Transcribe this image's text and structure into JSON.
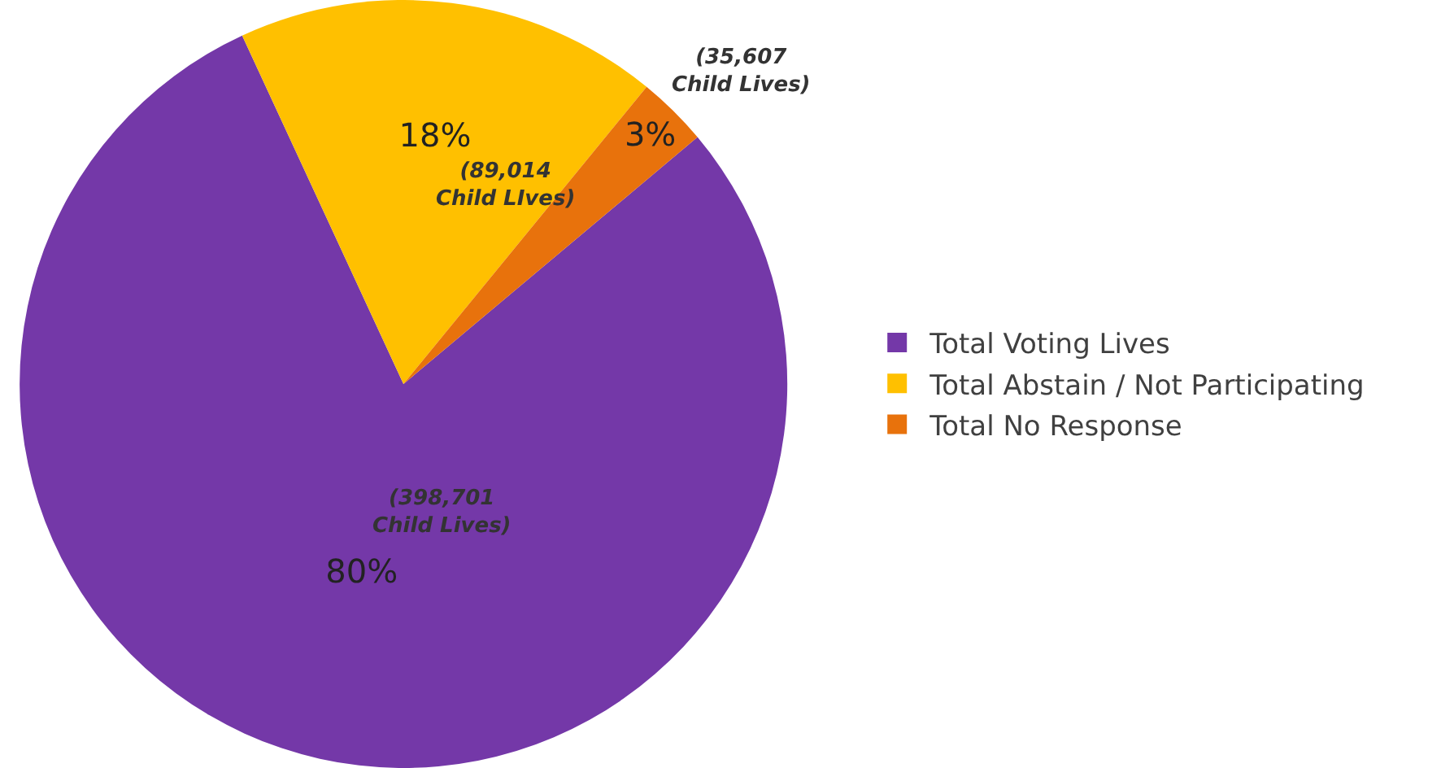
{
  "chart_data": {
    "type": "pie",
    "categories": [
      "Total Voting Lives",
      "Total Abstain / Not Participating",
      "Total No Response"
    ],
    "values": [
      80,
      18,
      3
    ],
    "colors": [
      "#7438a8",
      "#ffc000",
      "#e8720c"
    ],
    "value_labels": [
      "80%",
      "18%",
      "3%"
    ],
    "annotations": [
      "(398,701\nChild Lives)",
      "(89,014\nChild LIves)",
      "(35,607\nChild Lives)"
    ],
    "legend": "right"
  }
}
